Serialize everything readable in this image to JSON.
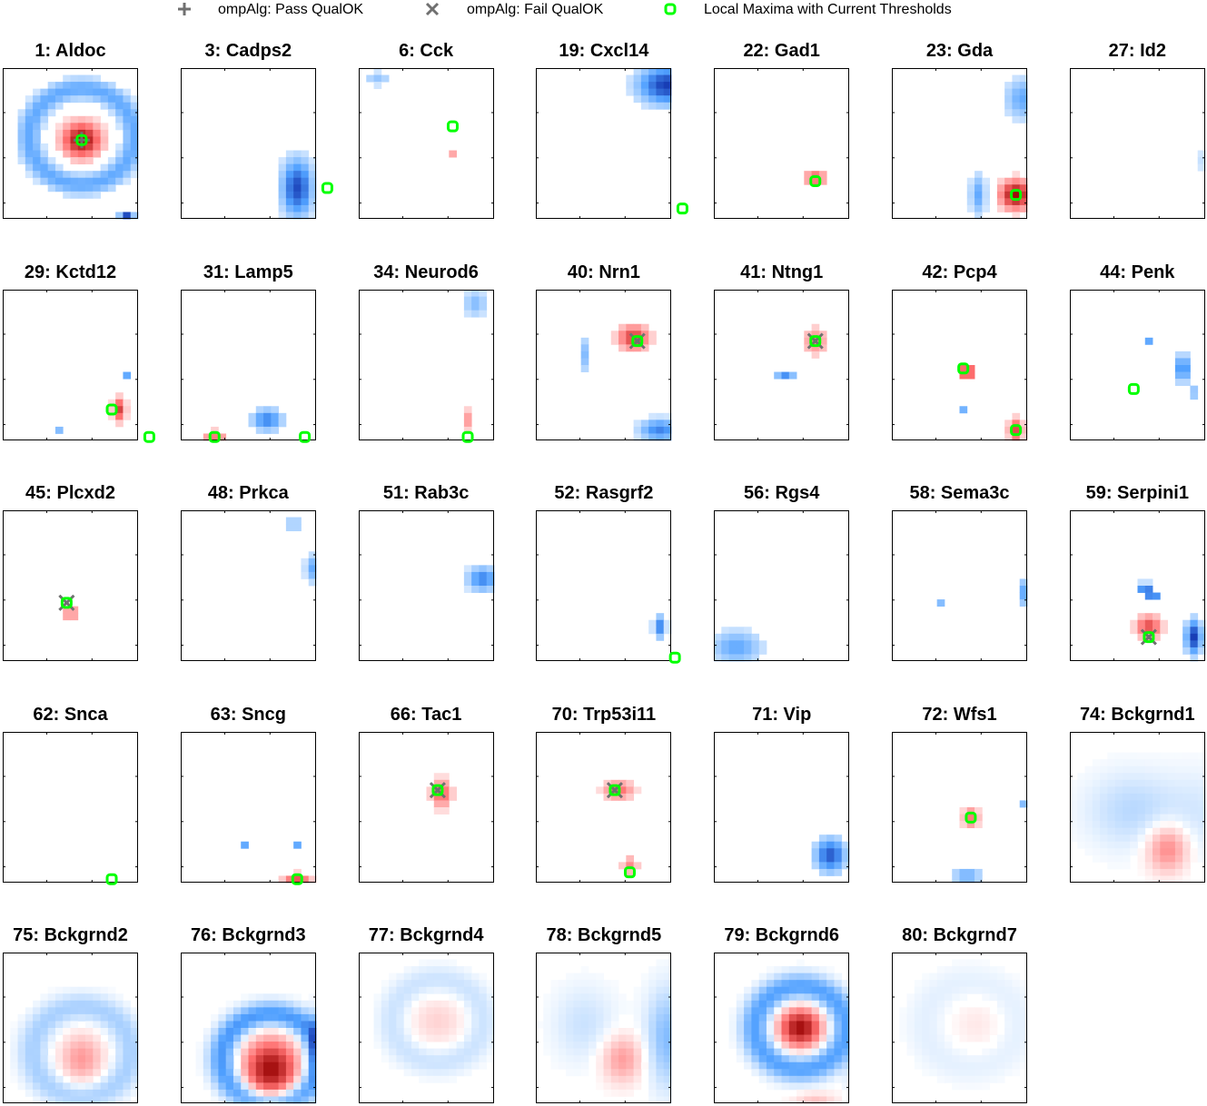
{
  "legend": {
    "pass_label": "ompAlg: Pass QualOK",
    "fail_label": "ompAlg: Fail QualOK",
    "maxima_label": "Local Maxima with Current Thresholds"
  },
  "colors": {
    "positive": "#e00000",
    "negative": "#0a52d6",
    "maxima": "#00ff00",
    "marker": "#707070",
    "frame": "#000000"
  },
  "chart_data": {
    "type": "heatmap",
    "grid_size": [
      22,
      18
    ],
    "value_range": [
      -1,
      1
    ],
    "panels": [
      {
        "title": "1: Aldoc",
        "blobs": [
          {
            "cx": 10,
            "cy": 10,
            "sx": 1.8,
            "sy": 1.8,
            "a": 0.95
          },
          {
            "kind": "ring",
            "cx": 10,
            "cy": 9.5,
            "r": 7,
            "w": 1.2,
            "a": -0.45
          },
          {
            "cx": 16,
            "cy": 21,
            "sx": 0.7,
            "sy": 0.5,
            "a": -0.8
          }
        ],
        "maxima": [
          [
            10,
            10
          ]
        ],
        "pass": [
          [
            10,
            10
          ]
        ],
        "fail": []
      },
      {
        "title": "3: Cadps2",
        "blobs": [
          {
            "cx": 15,
            "cy": 17,
            "sx": 1.5,
            "sy": 3,
            "a": -0.8
          },
          {
            "cx": 19,
            "cy": 13,
            "sx": 0.6,
            "sy": 4,
            "a": -0.45
          },
          {
            "cx": 19,
            "cy": 17,
            "sx": 0.7,
            "sy": 1.5,
            "a": 0.85
          }
        ],
        "maxima": [
          [
            19,
            17
          ]
        ],
        "pass": [],
        "fail": []
      },
      {
        "title": "6: Cck",
        "blobs": [
          {
            "cx": 2,
            "cy": 1,
            "sx": 1.3,
            "sy": 0.8,
            "a": -0.3
          },
          {
            "cx": 12,
            "cy": 12,
            "sx": 0.5,
            "sy": 0.5,
            "a": 0.3
          }
        ],
        "maxima": [
          [
            12,
            8
          ]
        ],
        "pass": [],
        "fail": []
      },
      {
        "title": "19: Cxcl14",
        "blobs": [
          {
            "cx": 17,
            "cy": 2,
            "sx": 2.8,
            "sy": 2,
            "a": -0.85
          },
          {
            "cx": 19,
            "cy": 12.5,
            "sx": 0.5,
            "sy": 2,
            "a": -0.55
          }
        ],
        "maxima": [
          [
            19,
            20
          ]
        ],
        "pass": [],
        "fail": []
      },
      {
        "title": "22: Gad1",
        "blobs": [
          {
            "cx": 13,
            "cy": 15.5,
            "sx": 1.1,
            "sy": 0.8,
            "a": 0.55
          }
        ],
        "maxima": [
          [
            13,
            16
          ]
        ],
        "pass": [],
        "fail": []
      },
      {
        "title": "23: Gda",
        "blobs": [
          {
            "cx": 16,
            "cy": 18,
            "sx": 1.5,
            "sy": 1.5,
            "a": 0.95
          },
          {
            "cx": 17,
            "cy": 4,
            "sx": 1.8,
            "sy": 2.2,
            "a": -0.45
          },
          {
            "cx": 11,
            "cy": 18,
            "sx": 0.8,
            "sy": 2.2,
            "a": -0.45
          }
        ],
        "maxima": [
          [
            16,
            18
          ]
        ],
        "pass": [],
        "fail": []
      },
      {
        "title": "27: Id2",
        "blobs": [
          {
            "cx": 18.3,
            "cy": 13,
            "sx": 0.8,
            "sy": 1.5,
            "a": -0.6
          }
        ],
        "maxima": [],
        "pass": [],
        "fail": []
      },
      {
        "title": "29: Kctd12",
        "blobs": [
          {
            "cx": 15,
            "cy": 17,
            "sx": 0.6,
            "sy": 1.2,
            "a": 0.7
          },
          {
            "cx": 16,
            "cy": 12,
            "sx": 0.5,
            "sy": 0.5,
            "a": -0.45
          },
          {
            "cx": 7,
            "cy": 20,
            "sx": 0.5,
            "sy": 0.5,
            "a": -0.35
          }
        ],
        "maxima": [
          [
            14,
            17
          ],
          [
            19,
            21
          ]
        ],
        "pass": [],
        "fail": []
      },
      {
        "title": "31: Lamp5",
        "blobs": [
          {
            "cx": 11,
            "cy": 18.5,
            "sx": 1.5,
            "sy": 1.2,
            "a": -0.6
          },
          {
            "cx": 4,
            "cy": 21,
            "sx": 1.2,
            "sy": 0.7,
            "a": 0.45
          }
        ],
        "maxima": [
          [
            4,
            21
          ],
          [
            16,
            21
          ]
        ],
        "pass": [],
        "fail": []
      },
      {
        "title": "34: Neurod6",
        "blobs": [
          {
            "cx": 15,
            "cy": 1.5,
            "sx": 1.2,
            "sy": 1.5,
            "a": -0.35
          },
          {
            "cx": 14,
            "cy": 18.5,
            "sx": 0.5,
            "sy": 1.2,
            "a": 0.35
          }
        ],
        "maxima": [
          [
            14,
            21
          ]
        ],
        "pass": [],
        "fail": []
      },
      {
        "title": "40: Nrn1",
        "blobs": [
          {
            "cx": 12.5,
            "cy": 6.5,
            "sx": 1.5,
            "sy": 1.3,
            "a": 0.7
          },
          {
            "cx": 6,
            "cy": 9,
            "sx": 0.5,
            "sy": 2,
            "a": -0.35
          },
          {
            "cx": 16,
            "cy": 20,
            "sx": 2,
            "sy": 1.2,
            "a": -0.6
          },
          {
            "cx": 19,
            "cy": 2,
            "sx": 0.5,
            "sy": 0.5,
            "a": -0.3
          }
        ],
        "maxima": [
          [
            13,
            7
          ]
        ],
        "pass": [],
        "fail": [
          [
            13,
            7
          ]
        ]
      },
      {
        "title": "41: Ntng1",
        "blobs": [
          {
            "cx": 13,
            "cy": 7,
            "sx": 1.2,
            "sy": 1.5,
            "a": 0.4
          },
          {
            "cx": 9,
            "cy": 12,
            "sx": 1,
            "sy": 0.5,
            "a": -0.55
          },
          {
            "cx": 18,
            "cy": 21,
            "sx": 0.5,
            "sy": 0.5,
            "a": -0.7
          }
        ],
        "maxima": [
          [
            13,
            7
          ]
        ],
        "pass": [],
        "fail": [
          [
            13,
            7
          ]
        ]
      },
      {
        "title": "42: Pcp4",
        "blobs": [
          {
            "cx": 9.5,
            "cy": 11.5,
            "sx": 0.8,
            "sy": 0.8,
            "a": 0.75
          },
          {
            "cx": 16,
            "cy": 20,
            "sx": 0.7,
            "sy": 1.2,
            "a": 0.65
          },
          {
            "cx": 9,
            "cy": 17,
            "sx": 0.5,
            "sy": 0.5,
            "a": -0.4
          }
        ],
        "maxima": [
          [
            9,
            11
          ],
          [
            16,
            20
          ]
        ],
        "pass": [],
        "fail": []
      },
      {
        "title": "44: Penk",
        "blobs": [
          {
            "cx": 14.5,
            "cy": 11,
            "sx": 0.8,
            "sy": 1.5,
            "a": -0.6
          },
          {
            "cx": 10,
            "cy": 7,
            "sx": 0.5,
            "sy": 0.5,
            "a": -0.45
          },
          {
            "cx": 16,
            "cy": 14.5,
            "sx": 0.5,
            "sy": 0.5,
            "a": -0.45
          }
        ],
        "maxima": [
          [
            8,
            14
          ]
        ],
        "pass": [],
        "fail": []
      },
      {
        "title": "45: Plcxd2",
        "blobs": [
          {
            "cx": 8.5,
            "cy": 14.5,
            "sx": 0.8,
            "sy": 0.8,
            "a": 0.45
          }
        ],
        "maxima": [
          [
            8,
            13
          ]
        ],
        "pass": [],
        "fail": [
          [
            8,
            13
          ]
        ]
      },
      {
        "title": "48: Prkca",
        "blobs": [
          {
            "cx": 14.5,
            "cy": 1.5,
            "sx": 1.2,
            "sy": 0.5,
            "a": -0.4
          },
          {
            "cx": 17.5,
            "cy": 8,
            "sx": 1,
            "sy": 1.5,
            "a": -0.5
          }
        ],
        "maxima": [],
        "pass": [],
        "fail": []
      },
      {
        "title": "51: Rab3c",
        "blobs": [
          {
            "cx": 16,
            "cy": 9.5,
            "sx": 1.5,
            "sy": 1.3,
            "a": -0.6
          }
        ],
        "maxima": [],
        "pass": [],
        "fail": []
      },
      {
        "title": "52: Rasgrf2",
        "blobs": [
          {
            "cx": 16,
            "cy": 16.5,
            "sx": 0.6,
            "sy": 1.2,
            "a": -0.6
          }
        ],
        "maxima": [
          [
            18,
            21
          ]
        ],
        "pass": [],
        "fail": []
      },
      {
        "title": "56: Rgs4",
        "blobs": [
          {
            "cx": 2.5,
            "cy": 19.5,
            "sx": 2.5,
            "sy": 1.8,
            "a": -0.45
          }
        ],
        "maxima": [],
        "pass": [],
        "fail": []
      },
      {
        "title": "58: Sema3c",
        "blobs": [
          {
            "cx": 17.5,
            "cy": 11.5,
            "sx": 0.8,
            "sy": 1.5,
            "a": -0.55
          },
          {
            "cx": 6,
            "cy": 13,
            "sx": 0.5,
            "sy": 0.5,
            "a": -0.35
          }
        ],
        "maxima": [],
        "pass": [],
        "fail": []
      },
      {
        "title": "59: Serpini1",
        "blobs": [
          {
            "cx": 10,
            "cy": 16.5,
            "sx": 1.2,
            "sy": 1.2,
            "a": 0.65
          },
          {
            "cx": 16,
            "cy": 18,
            "sx": 0.8,
            "sy": 1.8,
            "a": -0.85
          },
          {
            "cx": 9.5,
            "cy": 10.8,
            "sx": 0.5,
            "sy": 0.5,
            "a": -0.95
          },
          {
            "cx": 10.5,
            "cy": 12,
            "sx": 0.5,
            "sy": 0.5,
            "a": -0.9
          }
        ],
        "maxima": [
          [
            10,
            18
          ]
        ],
        "pass": [],
        "fail": [
          [
            10,
            18
          ]
        ]
      },
      {
        "title": "62: Snca",
        "blobs": [
          {
            "cx": 18.5,
            "cy": 6,
            "sx": 0.5,
            "sy": 1,
            "a": -0.45
          },
          {
            "cx": 18.5,
            "cy": 16,
            "sx": 0.5,
            "sy": 1.2,
            "a": -0.7
          }
        ],
        "maxima": [
          [
            14,
            21
          ]
        ],
        "pass": [],
        "fail": []
      },
      {
        "title": "63: Sncg",
        "blobs": [
          {
            "cx": 15,
            "cy": 21,
            "sx": 1.3,
            "sy": 0.6,
            "a": 0.6
          },
          {
            "cx": 8,
            "cy": 16,
            "sx": 0.5,
            "sy": 0.5,
            "a": -0.45
          },
          {
            "cx": 15,
            "cy": 16,
            "sx": 0.5,
            "sy": 0.5,
            "a": -0.45
          }
        ],
        "maxima": [
          [
            15,
            21
          ]
        ],
        "pass": [],
        "fail": []
      },
      {
        "title": "66: Tac1",
        "blobs": [
          {
            "cx": 10.5,
            "cy": 8.5,
            "sx": 1,
            "sy": 1.5,
            "a": 0.55
          }
        ],
        "maxima": [
          [
            10,
            8
          ]
        ],
        "pass": [],
        "fail": [
          [
            10,
            8
          ]
        ]
      },
      {
        "title": "70: Trp53i11",
        "blobs": [
          {
            "cx": 10.5,
            "cy": 8,
            "sx": 1.5,
            "sy": 1,
            "a": 0.5
          },
          {
            "cx": 12,
            "cy": 19,
            "sx": 0.8,
            "sy": 1,
            "a": 0.4
          }
        ],
        "maxima": [
          [
            10,
            8
          ],
          [
            12,
            20
          ]
        ],
        "pass": [],
        "fail": [
          [
            10,
            8
          ]
        ]
      },
      {
        "title": "71: Vip",
        "blobs": [
          {
            "cx": 15,
            "cy": 17.5,
            "sx": 1.5,
            "sy": 1.8,
            "a": -0.75
          }
        ],
        "maxima": [],
        "pass": [],
        "fail": []
      },
      {
        "title": "72: Wfs1",
        "blobs": [
          {
            "cx": 10,
            "cy": 12,
            "sx": 0.8,
            "sy": 1.2,
            "a": 0.45
          },
          {
            "cx": 9.5,
            "cy": 20.5,
            "sx": 1.5,
            "sy": 0.8,
            "a": -0.45
          },
          {
            "cx": 17,
            "cy": 10,
            "sx": 0.5,
            "sy": 0.5,
            "a": -0.35
          }
        ],
        "maxima": [
          [
            10,
            12
          ]
        ],
        "pass": [],
        "fail": []
      },
      {
        "title": "74: Bckgrnd1",
        "bg": true,
        "blobs": [
          {
            "cx": 12.5,
            "cy": 16.5,
            "sx": 2,
            "sy": 2.5,
            "a": 0.45
          },
          {
            "cx": 8,
            "cy": 11,
            "sx": 4.5,
            "sy": 4,
            "a": -0.2
          },
          {
            "cx": 17,
            "cy": 12,
            "sx": 3,
            "sy": 5,
            "a": -0.1
          }
        ],
        "maxima": [],
        "pass": [],
        "fail": []
      },
      {
        "title": "75: Bckgrnd2",
        "bg": true,
        "blobs": [
          {
            "cx": 10,
            "cy": 15,
            "sx": 2,
            "sy": 2.5,
            "a": 0.35
          },
          {
            "kind": "ring",
            "cx": 10,
            "cy": 14,
            "r": 6.5,
            "w": 1.5,
            "a": -0.25
          }
        ],
        "maxima": [],
        "pass": [],
        "fail": []
      },
      {
        "title": "76: Bckgrnd3",
        "bg": true,
        "blobs": [
          {
            "cx": 11.5,
            "cy": 16.5,
            "sx": 2.5,
            "sy": 3,
            "a": 0.95
          },
          {
            "kind": "ring",
            "cx": 11.5,
            "cy": 15,
            "r": 6.5,
            "w": 1.3,
            "a": -0.55
          },
          {
            "cx": 18,
            "cy": 13,
            "sx": 1,
            "sy": 3,
            "a": -0.5
          },
          {
            "cx": 19,
            "cy": 21,
            "sx": 0.6,
            "sy": 1,
            "a": 0.6
          }
        ],
        "maxima": [],
        "pass": [],
        "fail": []
      },
      {
        "title": "77: Bckgrnd4",
        "bg": true,
        "blobs": [
          {
            "cx": 10,
            "cy": 9.5,
            "sx": 2.5,
            "sy": 2.5,
            "a": 0.15
          },
          {
            "kind": "ring",
            "cx": 10,
            "cy": 9.5,
            "r": 6,
            "w": 1.5,
            "a": -0.15
          }
        ],
        "maxima": [],
        "pass": [],
        "fail": []
      },
      {
        "title": "78: Bckgrnd5",
        "bg": true,
        "blobs": [
          {
            "cx": 11,
            "cy": 15,
            "sx": 2,
            "sy": 2.5,
            "a": 0.35
          },
          {
            "cx": 17,
            "cy": 12,
            "sx": 2,
            "sy": 5,
            "a": -0.35
          },
          {
            "cx": 6,
            "cy": 10,
            "sx": 3,
            "sy": 4,
            "a": -0.15
          }
        ],
        "maxima": [],
        "pass": [],
        "fail": []
      },
      {
        "title": "79: Bckgrnd6",
        "bg": true,
        "blobs": [
          {
            "cx": 11,
            "cy": 10.5,
            "sx": 2,
            "sy": 2,
            "a": 0.95
          },
          {
            "kind": "ring",
            "cx": 11,
            "cy": 10.5,
            "r": 6,
            "w": 1.4,
            "a": -0.5
          },
          {
            "cx": 18.5,
            "cy": 17,
            "sx": 0.7,
            "sy": 3,
            "a": -0.5
          },
          {
            "cx": 13,
            "cy": 21,
            "sx": 2,
            "sy": 0.8,
            "a": 0.2
          }
        ],
        "maxima": [],
        "pass": [],
        "fail": []
      },
      {
        "title": "80: Bckgrnd7",
        "bg": true,
        "blobs": [
          {
            "cx": 11,
            "cy": 10,
            "sx": 2.5,
            "sy": 3,
            "a": 0.08
          },
          {
            "kind": "ring",
            "cx": 10,
            "cy": 10,
            "r": 6,
            "w": 2,
            "a": -0.08
          }
        ],
        "maxima": [],
        "pass": [],
        "fail": []
      }
    ]
  }
}
